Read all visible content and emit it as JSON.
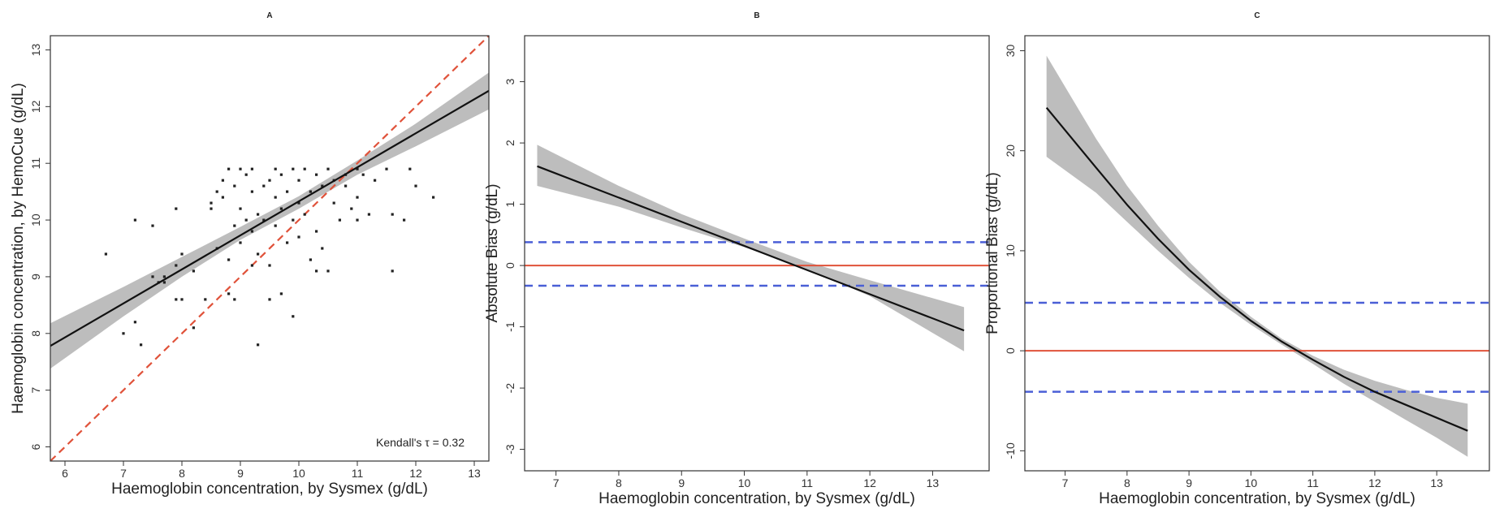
{
  "chart_data": [
    {
      "type": "scatter",
      "title": "A",
      "xlabel": "Haemoglobin concentration, by Sysmex (g/dL)",
      "ylabel": "Haemoglobin concentration, by HemoCue (g/dL)",
      "xlim": [
        5.75,
        13.25
      ],
      "ylim": [
        5.75,
        13.25
      ],
      "x_ticks": [
        6,
        7,
        8,
        9,
        10,
        11,
        12,
        13
      ],
      "y_ticks": [
        6,
        7,
        8,
        9,
        10,
        11,
        12,
        13
      ],
      "annotation": "Kendall's τ = 0.32",
      "colors": {
        "points": "#222222",
        "fit_line": "#111111",
        "ci_band": "#bdbdbd",
        "identity_line": "#e0523a"
      },
      "fit_line": {
        "x": [
          5.75,
          13.25
        ],
        "y": [
          7.78,
          12.28
        ]
      },
      "ci_band": {
        "x": [
          5.75,
          7,
          8,
          9,
          10,
          11,
          12,
          13.25
        ],
        "lower": [
          7.38,
          8.3,
          9.0,
          9.65,
          10.2,
          10.8,
          11.3,
          11.95
        ],
        "upper": [
          8.18,
          8.82,
          9.35,
          9.88,
          10.42,
          11.05,
          11.7,
          12.6
        ]
      },
      "identity_line": {
        "x": [
          5.75,
          13.25
        ],
        "y": [
          5.75,
          13.25
        ]
      },
      "points": [
        [
          6.7,
          9.4
        ],
        [
          7.0,
          8.0
        ],
        [
          7.2,
          8.2
        ],
        [
          7.2,
          10.0
        ],
        [
          7.3,
          7.8
        ],
        [
          7.5,
          9.9
        ],
        [
          7.5,
          9.0
        ],
        [
          7.6,
          8.9
        ],
        [
          7.7,
          9.0
        ],
        [
          7.7,
          8.9
        ],
        [
          7.9,
          10.2
        ],
        [
          7.9,
          9.2
        ],
        [
          7.9,
          8.6
        ],
        [
          8.0,
          9.4
        ],
        [
          8.0,
          8.6
        ],
        [
          8.2,
          9.1
        ],
        [
          8.2,
          8.1
        ],
        [
          8.4,
          8.6
        ],
        [
          8.5,
          10.2
        ],
        [
          8.5,
          10.3
        ],
        [
          8.6,
          10.5
        ],
        [
          8.6,
          9.5
        ],
        [
          8.7,
          10.7
        ],
        [
          8.7,
          10.4
        ],
        [
          8.8,
          10.9
        ],
        [
          8.8,
          9.3
        ],
        [
          8.8,
          8.7
        ],
        [
          8.9,
          10.6
        ],
        [
          8.9,
          9.9
        ],
        [
          8.9,
          8.6
        ],
        [
          9.0,
          10.9
        ],
        [
          9.0,
          10.2
        ],
        [
          9.0,
          9.6
        ],
        [
          9.1,
          10.8
        ],
        [
          9.1,
          10.0
        ],
        [
          9.2,
          10.5
        ],
        [
          9.2,
          9.8
        ],
        [
          9.2,
          10.9
        ],
        [
          9.3,
          10.1
        ],
        [
          9.3,
          7.8
        ],
        [
          9.3,
          9.4
        ],
        [
          9.4,
          10.6
        ],
        [
          9.4,
          10.0
        ],
        [
          9.5,
          10.7
        ],
        [
          9.5,
          9.2
        ],
        [
          9.5,
          8.6
        ],
        [
          9.6,
          10.9
        ],
        [
          9.6,
          10.4
        ],
        [
          9.6,
          9.9
        ],
        [
          9.7,
          10.2
        ],
        [
          9.7,
          10.8
        ],
        [
          9.7,
          8.7
        ],
        [
          9.8,
          10.5
        ],
        [
          9.8,
          9.6
        ],
        [
          9.9,
          10.9
        ],
        [
          9.9,
          10.0
        ],
        [
          9.9,
          8.3
        ],
        [
          10.0,
          10.7
        ],
        [
          10.0,
          10.3
        ],
        [
          10.0,
          9.7
        ],
        [
          10.1,
          10.9
        ],
        [
          10.1,
          10.1
        ],
        [
          10.2,
          10.5
        ],
        [
          10.2,
          9.3
        ],
        [
          10.3,
          10.8
        ],
        [
          10.3,
          9.8
        ],
        [
          10.4,
          10.6
        ],
        [
          10.4,
          9.5
        ],
        [
          10.5,
          10.9
        ],
        [
          10.5,
          9.1
        ],
        [
          10.6,
          10.3
        ],
        [
          10.6,
          10.7
        ],
        [
          10.7,
          10.0
        ],
        [
          10.8,
          10.8
        ],
        [
          10.8,
          10.6
        ],
        [
          10.9,
          10.2
        ],
        [
          11.0,
          10.9
        ],
        [
          11.0,
          10.4
        ],
        [
          11.1,
          10.8
        ],
        [
          11.2,
          10.1
        ],
        [
          11.3,
          10.7
        ],
        [
          11.5,
          10.9
        ],
        [
          11.6,
          9.1
        ],
        [
          11.6,
          10.1
        ],
        [
          11.8,
          10.0
        ],
        [
          11.9,
          10.9
        ],
        [
          12.0,
          10.6
        ],
        [
          12.3,
          10.4
        ],
        [
          11.0,
          10.0
        ],
        [
          10.3,
          9.1
        ],
        [
          9.2,
          9.2
        ]
      ]
    },
    {
      "type": "line",
      "title": "B",
      "xlabel": "Haemoglobin concentration, by Sysmex (g/dL)",
      "ylabel": "Absolute Bias (g/dL)",
      "xlim": [
        6.5,
        13.9
      ],
      "ylim": [
        -3.35,
        3.75
      ],
      "x_ticks": [
        7,
        8,
        9,
        10,
        11,
        12,
        13
      ],
      "y_ticks": [
        -3,
        -2,
        -1,
        0,
        1,
        2,
        3
      ],
      "colors": {
        "fit_line": "#111111",
        "ci_band": "#bdbdbd",
        "zero_line": "#e0523a",
        "limits": "#4a5fd6"
      },
      "fit_line": {
        "x": [
          6.7,
          13.5
        ],
        "y": [
          1.62,
          -1.06
        ]
      },
      "ci_band": {
        "x": [
          6.7,
          8,
          9,
          10,
          11,
          12,
          13.5
        ],
        "lower": [
          1.3,
          0.96,
          0.62,
          0.3,
          -0.06,
          -0.5,
          -1.4
        ],
        "upper": [
          1.97,
          1.3,
          0.84,
          0.44,
          0.06,
          -0.24,
          -0.68
        ]
      },
      "reference_lines": {
        "zero": 0,
        "limits": [
          0.38,
          -0.33
        ]
      }
    },
    {
      "type": "line",
      "title": "C",
      "xlabel": "Haemoglobin concentration, by Sysmex (g/dL)",
      "ylabel": "Proportional Bias (g/dL)",
      "xlim": [
        6.35,
        13.85
      ],
      "ylim": [
        -12.0,
        31.5
      ],
      "x_ticks": [
        7,
        8,
        9,
        10,
        11,
        12,
        13
      ],
      "y_ticks": [
        -10,
        0,
        10,
        20,
        30
      ],
      "colors": {
        "fit_line": "#111111",
        "ci_band": "#bdbdbd",
        "zero_line": "#e0523a",
        "limits": "#4a5fd6"
      },
      "fit_line": {
        "x": [
          6.7,
          7.5,
          8.0,
          8.5,
          9.0,
          9.5,
          10.0,
          10.5,
          11.0,
          11.5,
          12.0,
          12.5,
          13.0,
          13.5
        ],
        "y": [
          24.3,
          18.3,
          14.6,
          11.2,
          8.1,
          5.4,
          3.0,
          0.9,
          -0.9,
          -2.6,
          -4.1,
          -5.4,
          -6.7,
          -8.0
        ]
      },
      "ci_band": {
        "x": [
          6.7,
          7.5,
          8.0,
          8.5,
          9.0,
          9.5,
          10.0,
          10.5,
          11.0,
          11.5,
          12.0,
          12.5,
          13.0,
          13.5
        ],
        "lower": [
          19.4,
          15.8,
          12.9,
          10.0,
          7.3,
          4.8,
          2.6,
          0.6,
          -1.3,
          -3.3,
          -5.1,
          -6.9,
          -8.7,
          -10.6
        ],
        "upper": [
          29.5,
          21.2,
          16.5,
          12.5,
          8.9,
          5.9,
          3.4,
          1.2,
          -0.5,
          -1.9,
          -3.0,
          -3.9,
          -4.7,
          -5.3
        ]
      },
      "reference_lines": {
        "zero": 0,
        "limits": [
          4.8,
          -4.1
        ]
      }
    }
  ]
}
